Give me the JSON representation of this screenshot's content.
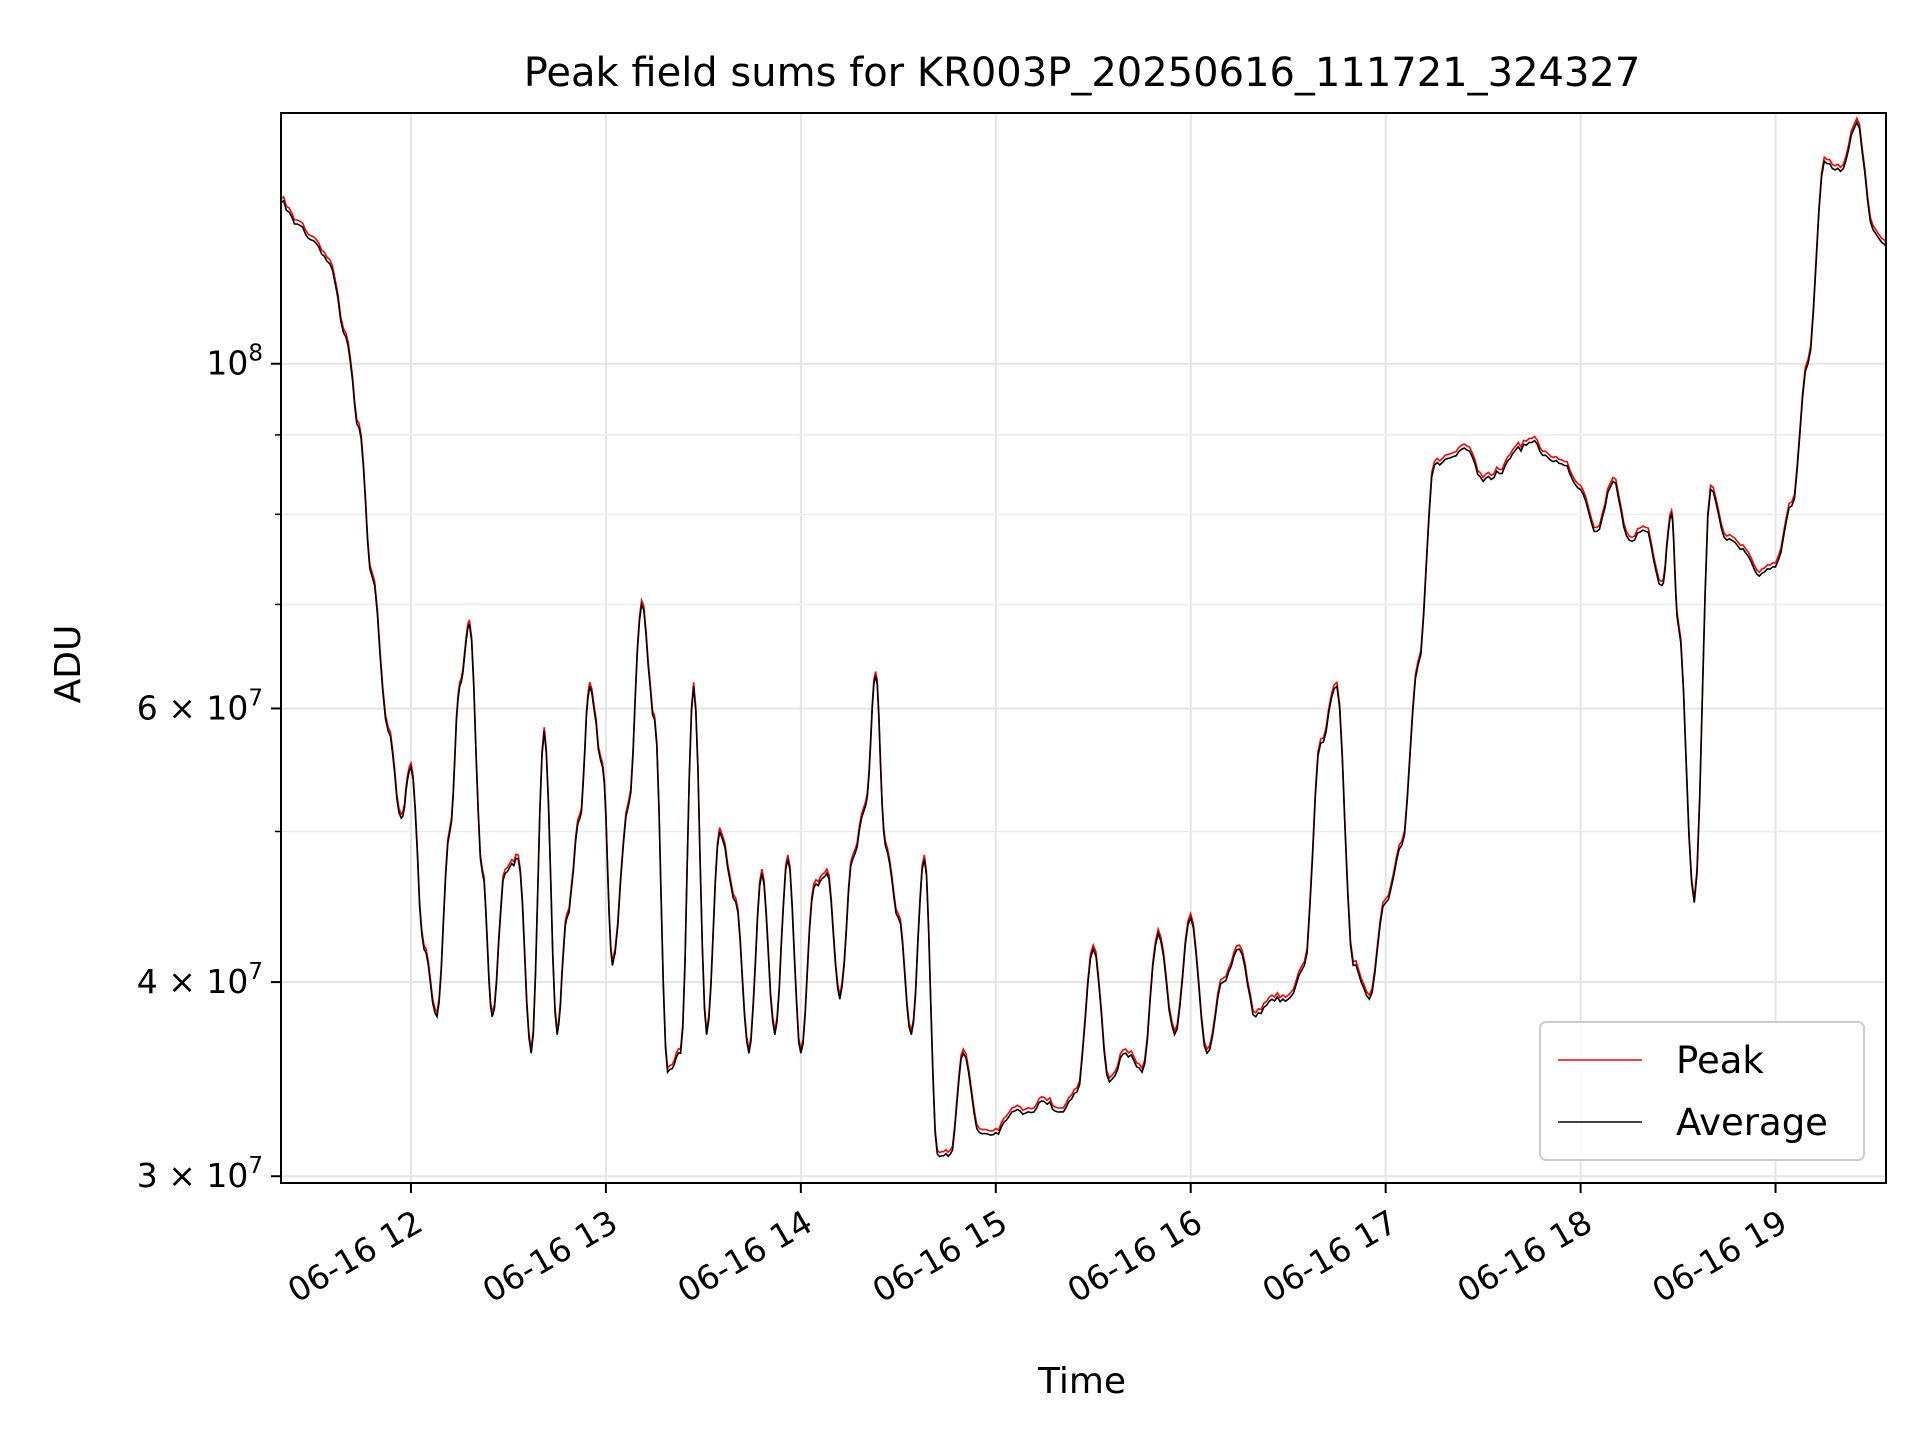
{
  "chart_data": {
    "type": "line",
    "title": "Peak field sums for KR003P_20250616_111721_324327",
    "xlabel": "Time",
    "ylabel": "ADU",
    "y_scale": "log",
    "ylim": [
      29700000,
      145000000
    ],
    "xlim": [
      "2025-06-16 11:20",
      "2025-06-16 19:34"
    ],
    "x_ticks": [
      {
        "label": "06-16 12",
        "time": "2025-06-16 12:00"
      },
      {
        "label": "06-16 13",
        "time": "2025-06-16 13:00"
      },
      {
        "label": "06-16 14",
        "time": "2025-06-16 14:00"
      },
      {
        "label": "06-16 15",
        "time": "2025-06-16 15:00"
      },
      {
        "label": "06-16 16",
        "time": "2025-06-16 16:00"
      },
      {
        "label": "06-16 17",
        "time": "2025-06-16 17:00"
      },
      {
        "label": "06-16 18",
        "time": "2025-06-16 18:00"
      },
      {
        "label": "06-16 19",
        "time": "2025-06-16 19:00"
      }
    ],
    "y_ticks": [
      {
        "value": 30000000,
        "base": "3 × 10",
        "exp": "7"
      },
      {
        "value": 40000000,
        "base": "4 × 10",
        "exp": "7"
      },
      {
        "value": 60000000,
        "base": "6 × 10",
        "exp": "7"
      },
      {
        "value": 100000000,
        "base": "10",
        "exp": "8"
      }
    ],
    "y_minor_ticks": [
      50000000,
      70000000,
      80000000,
      90000000
    ],
    "grid": true,
    "legend_position": "bottom-right",
    "series": [
      {
        "name": "Peak",
        "color": "#ff0000",
        "offset_factor": 1.006
      },
      {
        "name": "Average",
        "color": "#000000",
        "offset_factor": 1.0
      }
    ],
    "x": [
      "2025-06-16 11:20",
      "2025-06-16 11:25",
      "2025-06-16 11:30",
      "2025-06-16 11:35",
      "2025-06-16 11:40",
      "2025-06-16 11:44",
      "2025-06-16 11:48",
      "2025-06-16 11:53",
      "2025-06-16 11:57",
      "2025-06-16 12:00",
      "2025-06-16 12:04",
      "2025-06-16 12:08",
      "2025-06-16 12:12",
      "2025-06-16 12:15",
      "2025-06-16 12:18",
      "2025-06-16 12:22",
      "2025-06-16 12:25",
      "2025-06-16 12:29",
      "2025-06-16 12:33",
      "2025-06-16 12:37",
      "2025-06-16 12:41",
      "2025-06-16 12:45",
      "2025-06-16 12:48",
      "2025-06-16 12:52",
      "2025-06-16 12:55",
      "2025-06-16 12:59",
      "2025-06-16 13:02",
      "2025-06-16 13:07",
      "2025-06-16 13:11",
      "2025-06-16 13:15",
      "2025-06-16 13:19",
      "2025-06-16 13:23",
      "2025-06-16 13:27",
      "2025-06-16 13:31",
      "2025-06-16 13:35",
      "2025-06-16 13:40",
      "2025-06-16 13:44",
      "2025-06-16 13:48",
      "2025-06-16 13:52",
      "2025-06-16 13:56",
      "2025-06-16 14:00",
      "2025-06-16 14:04",
      "2025-06-16 14:08",
      "2025-06-16 14:12",
      "2025-06-16 14:16",
      "2025-06-16 14:20",
      "2025-06-16 14:23",
      "2025-06-16 14:26",
      "2025-06-16 14:30",
      "2025-06-16 14:34",
      "2025-06-16 14:38",
      "2025-06-16 14:42",
      "2025-06-16 14:46",
      "2025-06-16 14:50",
      "2025-06-16 14:55",
      "2025-06-16 15:00",
      "2025-06-16 15:05",
      "2025-06-16 15:10",
      "2025-06-16 15:15",
      "2025-06-16 15:20",
      "2025-06-16 15:25",
      "2025-06-16 15:30",
      "2025-06-16 15:35",
      "2025-06-16 15:40",
      "2025-06-16 15:45",
      "2025-06-16 15:50",
      "2025-06-16 15:55",
      "2025-06-16 16:00",
      "2025-06-16 16:05",
      "2025-06-16 16:10",
      "2025-06-16 16:15",
      "2025-06-16 16:20",
      "2025-06-16 16:25",
      "2025-06-16 16:30",
      "2025-06-16 16:35",
      "2025-06-16 16:40",
      "2025-06-16 16:45",
      "2025-06-16 16:50",
      "2025-06-16 16:55",
      "2025-06-16 17:00",
      "2025-06-16 17:05",
      "2025-06-16 17:10",
      "2025-06-16 17:15",
      "2025-06-16 17:20",
      "2025-06-16 17:25",
      "2025-06-16 17:30",
      "2025-06-16 17:35",
      "2025-06-16 17:40",
      "2025-06-16 17:45",
      "2025-06-16 17:50",
      "2025-06-16 17:55",
      "2025-06-16 18:00",
      "2025-06-16 18:05",
      "2025-06-16 18:10",
      "2025-06-16 18:15",
      "2025-06-16 18:20",
      "2025-06-16 18:25",
      "2025-06-16 18:28",
      "2025-06-16 18:30",
      "2025-06-16 18:35",
      "2025-06-16 18:40",
      "2025-06-16 18:45",
      "2025-06-16 18:50",
      "2025-06-16 18:55",
      "2025-06-16 19:00",
      "2025-06-16 19:05",
      "2025-06-16 19:10",
      "2025-06-16 19:15",
      "2025-06-16 19:20",
      "2025-06-16 19:25",
      "2025-06-16 19:30",
      "2025-06-16 19:34"
    ],
    "values": [
      127000000,
      123000000,
      120000000,
      116000000,
      104000000,
      91000000,
      73000000,
      58000000,
      51000000,
      55000000,
      42000000,
      38000000,
      50000000,
      62000000,
      68000000,
      47000000,
      38000000,
      47000000,
      48000000,
      36000000,
      58000000,
      37000000,
      44000000,
      51000000,
      62000000,
      55000000,
      41000000,
      52000000,
      70000000,
      59000000,
      35000000,
      36000000,
      62000000,
      37000000,
      50000000,
      45000000,
      36000000,
      47000000,
      37000000,
      48000000,
      36000000,
      46000000,
      47000000,
      39000000,
      48000000,
      52000000,
      63000000,
      49000000,
      44000000,
      37000000,
      48000000,
      31000000,
      31000000,
      36000000,
      32000000,
      32000000,
      33000000,
      33000000,
      33500000,
      33000000,
      34000000,
      42000000,
      34500000,
      36000000,
      35000000,
      43000000,
      37000000,
      44000000,
      36000000,
      40000000,
      42000000,
      38000000,
      39000000,
      39000000,
      41000000,
      57000000,
      62000000,
      41000000,
      39000000,
      45000000,
      49000000,
      64000000,
      86000000,
      87000000,
      88000000,
      84000000,
      85000000,
      88000000,
      89000000,
      87000000,
      86000000,
      83000000,
      78000000,
      84000000,
      77000000,
      78000000,
      72000000,
      80000000,
      68000000,
      45000000,
      83000000,
      77000000,
      76000000,
      73000000,
      74000000,
      81000000,
      100000000,
      135000000,
      133000000,
      143000000,
      122000000,
      119000000
    ]
  }
}
